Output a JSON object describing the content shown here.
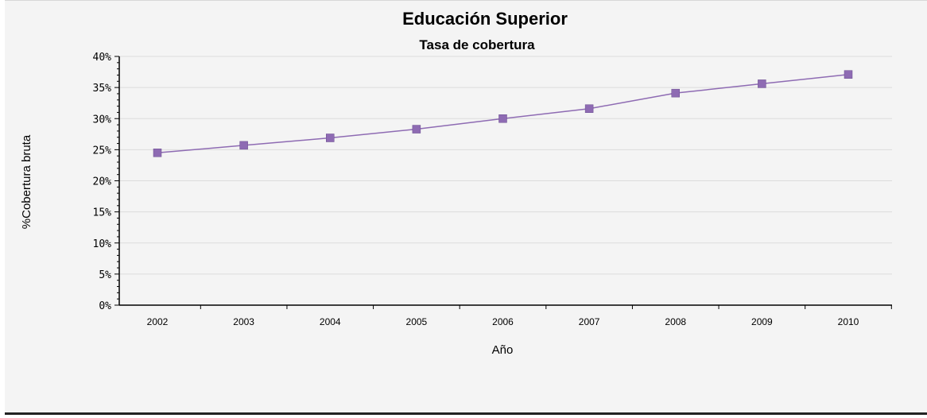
{
  "chart_data": {
    "type": "line",
    "title": "Educación Superior",
    "subtitle": "Tasa de cobertura",
    "xlabel": "Año",
    "ylabel": "%Cobertura bruta",
    "categories": [
      "2002",
      "2003",
      "2004",
      "2005",
      "2006",
      "2007",
      "2008",
      "2009",
      "2010"
    ],
    "series": [
      {
        "values": [
          24.5,
          25.7,
          26.9,
          28.3,
          30.0,
          31.6,
          34.1,
          35.6,
          37.1
        ],
        "color": "#8e6bb3",
        "marker": "square"
      }
    ],
    "ylim": [
      0,
      40
    ],
    "yticks": [
      0,
      5,
      10,
      15,
      20,
      25,
      30,
      35,
      40
    ],
    "ytick_labels": [
      "0%",
      "5%",
      "10%",
      "15%",
      "20%",
      "25%",
      "30%",
      "35%",
      "40%"
    ],
    "grid": true,
    "legend": "none"
  }
}
